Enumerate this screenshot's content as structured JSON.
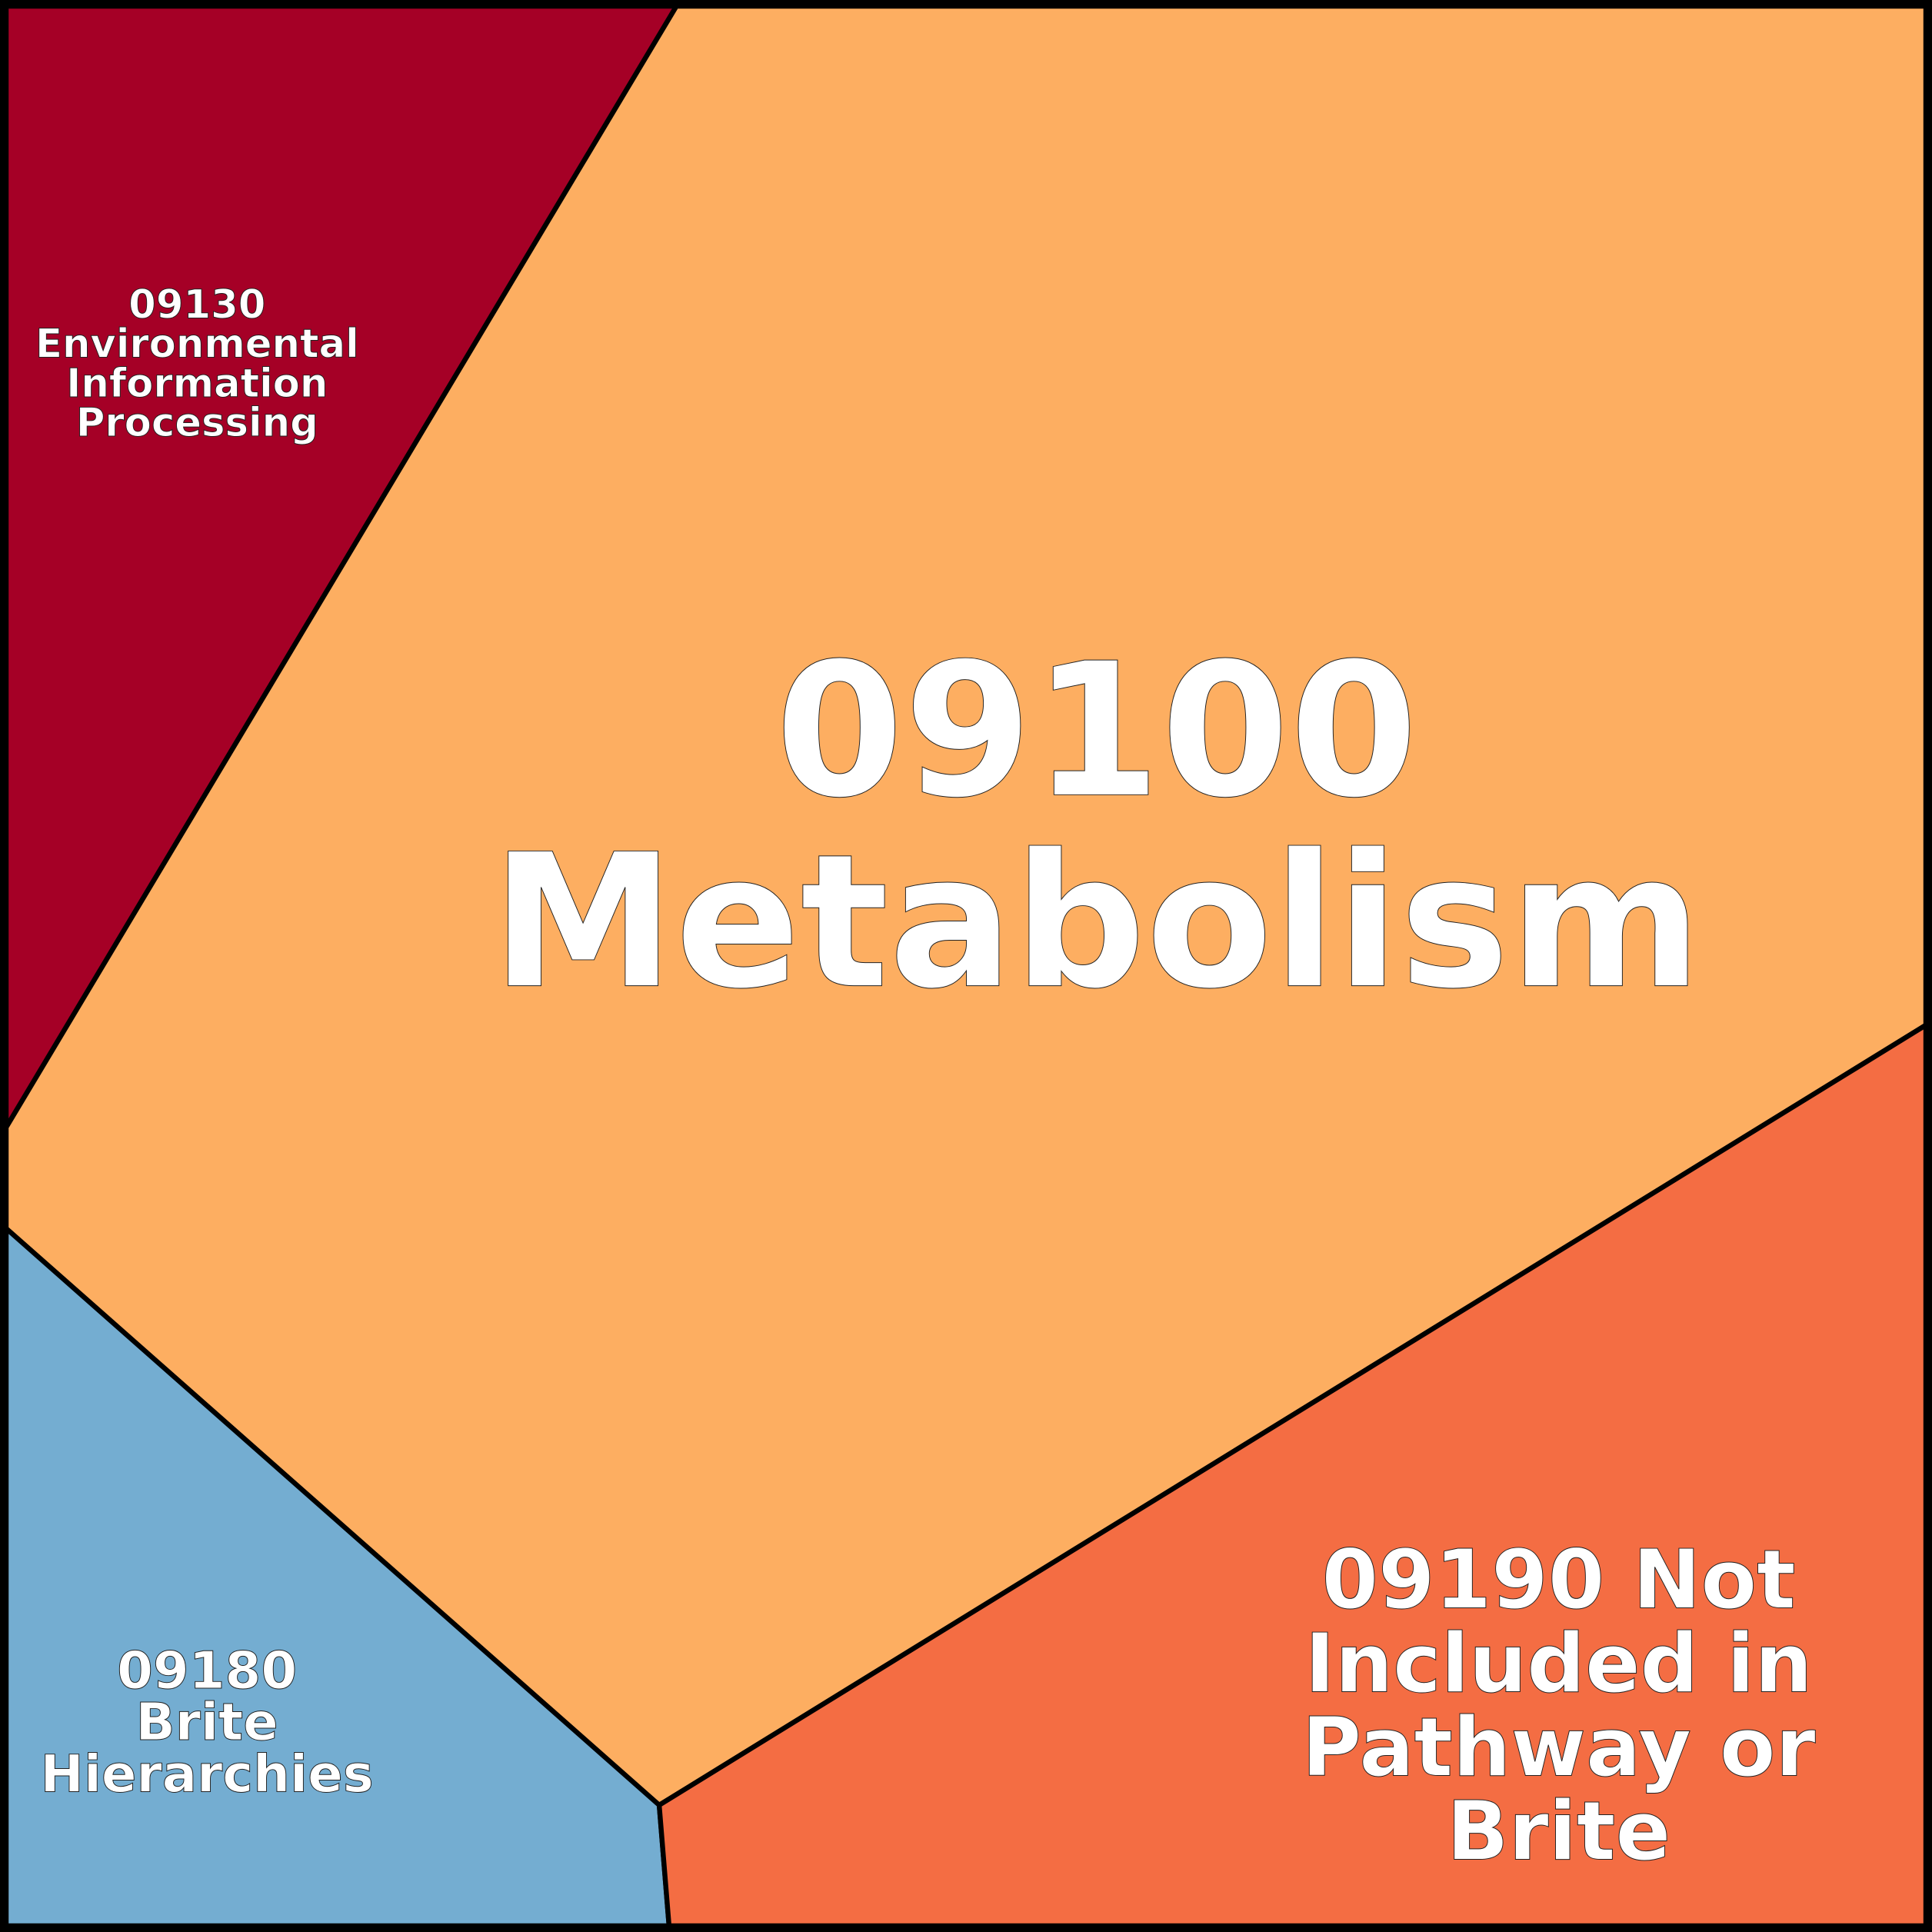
{
  "cells": [
    {
      "label_lines": [
        "09130",
        "Environmental",
        "Information",
        "Processing"
      ]
    },
    {
      "label_lines": [
        "09100",
        "Metabolism"
      ]
    },
    {
      "label_lines": [
        "09190 Not",
        "Included in",
        "Pathway or",
        "Brite"
      ]
    },
    {
      "label_lines": [
        "09180",
        "Brite",
        "Hierarchies"
      ]
    }
  ]
}
